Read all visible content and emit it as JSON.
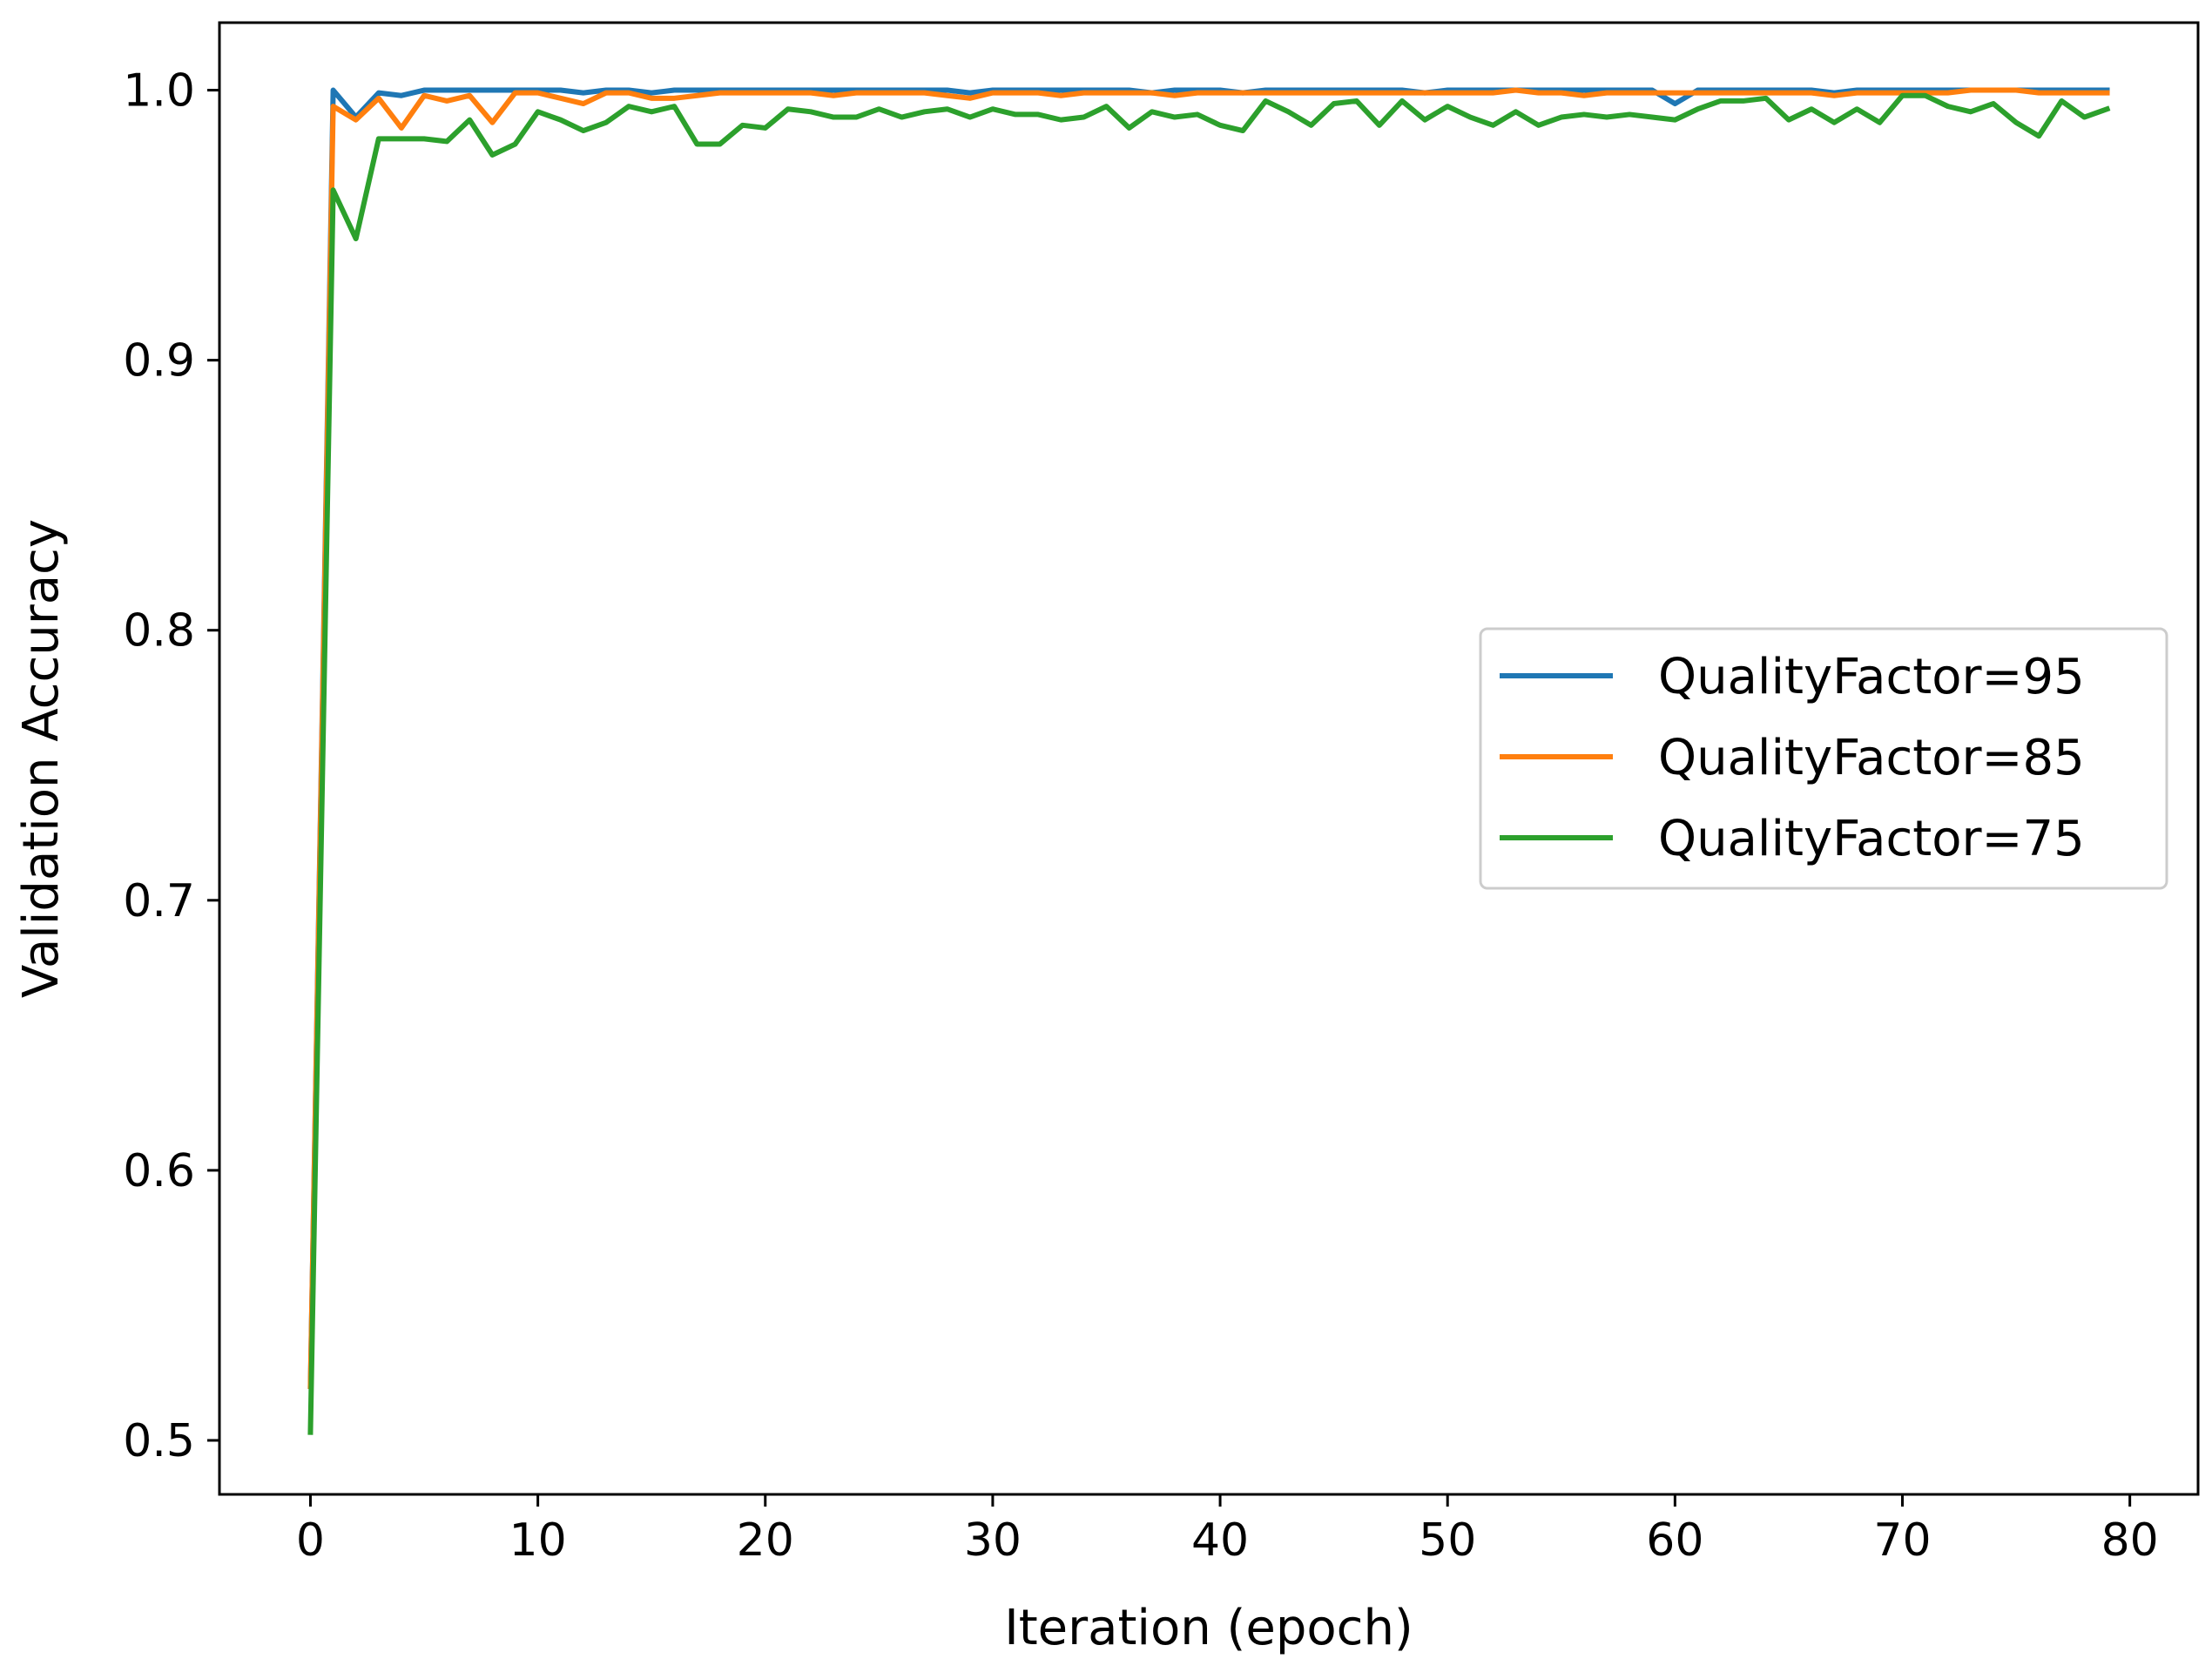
{
  "chart_data": {
    "type": "line",
    "xlabel": "Iteration (epoch)",
    "ylabel": "Validation Accuracy",
    "xlim": [
      -4,
      83
    ],
    "ylim": [
      0.48,
      1.025
    ],
    "xticks": [
      0,
      10,
      20,
      30,
      40,
      50,
      60,
      70,
      80
    ],
    "yticks": [
      0.5,
      0.6,
      0.7,
      0.8,
      0.9,
      1.0
    ],
    "xtick_labels": [
      "0",
      "10",
      "20",
      "30",
      "40",
      "50",
      "60",
      "70",
      "80"
    ],
    "ytick_labels": [
      "0.5",
      "0.6",
      "0.7",
      "0.8",
      "0.9",
      "1.0"
    ],
    "grid": false,
    "legend_position": "center-right",
    "series": [
      {
        "name": "QualityFactor=95",
        "color": "#1f77b4",
        "values": [
          0.52,
          1.0,
          0.99,
          0.999,
          0.998,
          1.0,
          1.0,
          1.0,
          1.0,
          1.0,
          1.0,
          1.0,
          0.999,
          1.0,
          1.0,
          0.999,
          1.0,
          1.0,
          1.0,
          1.0,
          1.0,
          1.0,
          1.0,
          1.0,
          1.0,
          1.0,
          1.0,
          1.0,
          1.0,
          0.999,
          1.0,
          1.0,
          1.0,
          1.0,
          1.0,
          1.0,
          1.0,
          0.999,
          1.0,
          1.0,
          1.0,
          0.999,
          1.0,
          1.0,
          1.0,
          1.0,
          1.0,
          1.0,
          1.0,
          0.999,
          1.0,
          1.0,
          1.0,
          1.0,
          1.0,
          1.0,
          1.0,
          1.0,
          1.0,
          1.0,
          0.995,
          1.0,
          1.0,
          1.0,
          1.0,
          1.0,
          1.0,
          0.999,
          1.0,
          1.0,
          1.0,
          1.0,
          1.0,
          1.0,
          1.0,
          1.0,
          1.0,
          1.0,
          1.0,
          1.0
        ]
      },
      {
        "name": "QualityFactor=85",
        "color": "#ff7f0e",
        "values": [
          0.52,
          0.994,
          0.989,
          0.997,
          0.986,
          0.998,
          0.996,
          0.998,
          0.988,
          0.999,
          0.999,
          0.997,
          0.995,
          0.999,
          0.999,
          0.997,
          0.997,
          0.998,
          0.999,
          0.999,
          0.999,
          0.999,
          0.999,
          0.998,
          0.999,
          0.999,
          0.999,
          0.999,
          0.998,
          0.997,
          0.999,
          0.999,
          0.999,
          0.998,
          0.999,
          0.999,
          0.999,
          0.999,
          0.998,
          0.999,
          0.999,
          0.999,
          0.999,
          0.999,
          0.999,
          0.999,
          0.999,
          0.999,
          0.999,
          0.999,
          0.999,
          0.999,
          0.999,
          1.0,
          0.999,
          0.999,
          0.998,
          0.999,
          0.999,
          0.999,
          0.999,
          0.999,
          0.999,
          0.999,
          0.999,
          0.999,
          0.999,
          0.998,
          0.999,
          0.999,
          0.999,
          0.999,
          0.999,
          1.0,
          1.0,
          1.0,
          0.999,
          0.999,
          0.999,
          0.999
        ]
      },
      {
        "name": "QualityFactor=75",
        "color": "#2ca02c",
        "values": [
          0.503,
          0.963,
          0.945,
          0.982,
          0.982,
          0.982,
          0.981,
          0.989,
          0.976,
          0.98,
          0.992,
          0.989,
          0.985,
          0.988,
          0.994,
          0.992,
          0.994,
          0.98,
          0.98,
          0.987,
          0.986,
          0.993,
          0.992,
          0.99,
          0.99,
          0.993,
          0.99,
          0.992,
          0.993,
          0.99,
          0.993,
          0.991,
          0.991,
          0.989,
          0.99,
          0.994,
          0.986,
          0.992,
          0.99,
          0.991,
          0.987,
          0.985,
          0.996,
          0.992,
          0.987,
          0.995,
          0.996,
          0.987,
          0.996,
          0.989,
          0.994,
          0.99,
          0.987,
          0.992,
          0.987,
          0.99,
          0.991,
          0.99,
          0.991,
          0.99,
          0.989,
          0.993,
          0.996,
          0.996,
          0.997,
          0.989,
          0.993,
          0.988,
          0.993,
          0.988,
          0.998,
          0.998,
          0.994,
          0.992,
          0.995,
          0.988,
          0.983,
          0.996,
          0.99,
          0.993
        ]
      }
    ]
  }
}
